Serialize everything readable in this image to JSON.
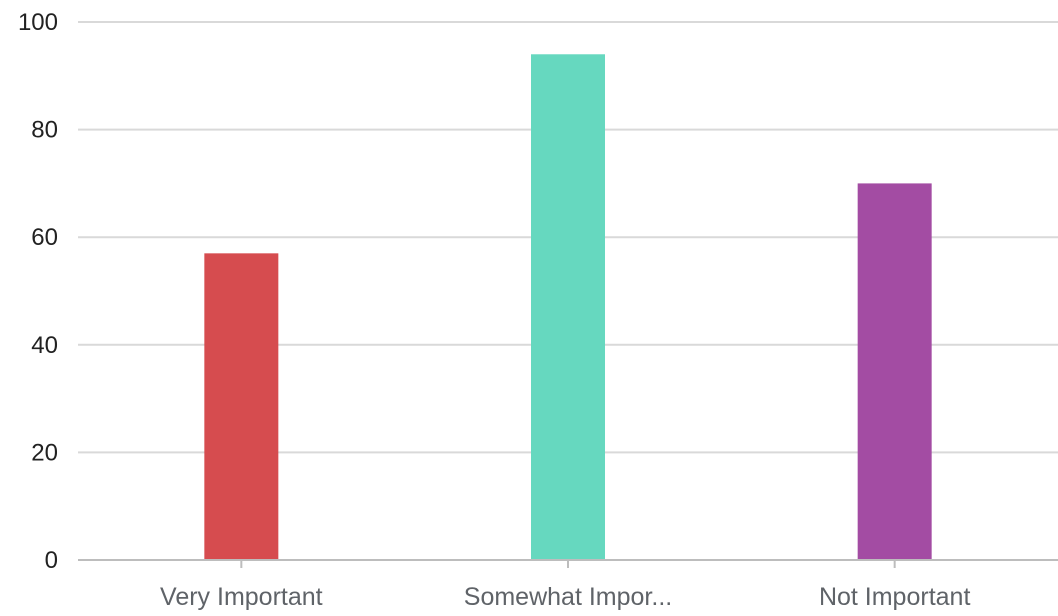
{
  "chart_data": {
    "type": "bar",
    "categories": [
      "Very Important",
      "Somewhat Impor...",
      "Not Important"
    ],
    "values": [
      57,
      94,
      70
    ],
    "colors": [
      "#d64c4f",
      "#66d8bf",
      "#a34ca3"
    ],
    "ylim": [
      0,
      100
    ],
    "yticks": [
      0,
      20,
      40,
      60,
      80,
      100
    ],
    "grid": true,
    "title": "",
    "xlabel": "",
    "ylabel": ""
  }
}
